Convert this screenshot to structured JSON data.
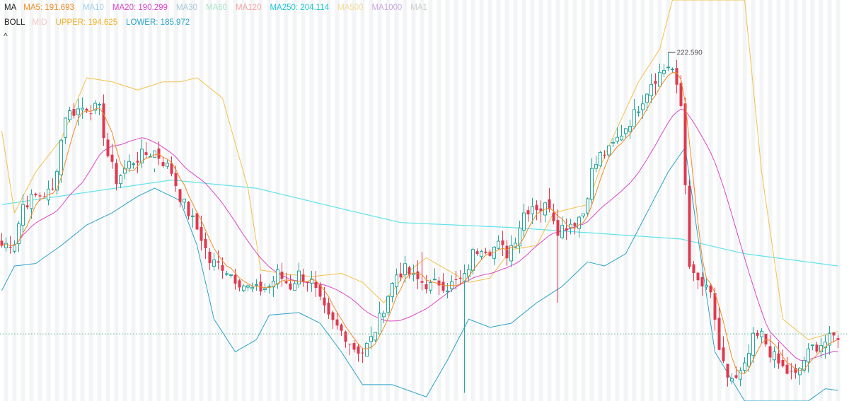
{
  "legend": {
    "ma": {
      "title": "MA",
      "items": [
        {
          "name": "MA5",
          "value": "191.693",
          "color": "#f08a24"
        },
        {
          "name": "MA10",
          "value": "",
          "color": "#9fd0ee"
        },
        {
          "name": "MA20",
          "value": "190.299",
          "color": "#d946c8"
        },
        {
          "name": "MA30",
          "value": "",
          "color": "#a8c8dc"
        },
        {
          "name": "MA60",
          "value": "",
          "color": "#a8e3c9"
        },
        {
          "name": "MA120",
          "value": "",
          "color": "#f5a3a3"
        },
        {
          "name": "MA250",
          "value": "204.114",
          "color": "#1ec7d6"
        },
        {
          "name": "MA500",
          "value": "",
          "color": "#f3d99a"
        },
        {
          "name": "MA1000",
          "value": "",
          "color": "#c9a8e0"
        },
        {
          "name": "MA1",
          "value": "",
          "color": "#cccccc"
        }
      ]
    },
    "boll": {
      "title": "BOLL",
      "items": [
        {
          "name": "MID",
          "value": "",
          "color": "#f4c6c6"
        },
        {
          "name": "UPPER",
          "value": "194.625",
          "color": "#f0b020"
        },
        {
          "name": "LOWER",
          "value": "185.972",
          "color": "#2aa3c8"
        }
      ]
    },
    "collapse_symbol": "^"
  },
  "colors": {
    "up": "#26a69a",
    "down": "#e0384f",
    "background_band": "#f3f4f6",
    "current_line": "#5aaf8a"
  },
  "chart_data": {
    "type": "candlestick",
    "ylim": [
      180,
      229
    ],
    "max_marker": "222.590",
    "max_value": 222.59,
    "current_price": 188.2,
    "indicator_styles": {
      "ma5": "#f08a24",
      "ma20": "#d946c8",
      "ma250": "#5ee3ea",
      "boll_upper": "#f2c14a",
      "boll_lower": "#2aa3c8"
    },
    "key_closes": [
      {
        "x": 0,
        "close": 199.0
      },
      {
        "x": 3,
        "close": 199.5
      },
      {
        "x": 5,
        "close": 204.0
      },
      {
        "x": 8,
        "close": 205.0
      },
      {
        "x": 12,
        "close": 205.6
      },
      {
        "x": 15,
        "close": 215.0
      },
      {
        "x": 20,
        "close": 216.0
      },
      {
        "x": 23,
        "close": 215.5
      },
      {
        "x": 25,
        "close": 210.0
      },
      {
        "x": 27,
        "close": 207.0
      },
      {
        "x": 30,
        "close": 209.0
      },
      {
        "x": 33,
        "close": 210.0
      },
      {
        "x": 36,
        "close": 210.5
      },
      {
        "x": 40,
        "close": 208.0
      },
      {
        "x": 42,
        "close": 205.0
      },
      {
        "x": 44,
        "close": 203.0
      },
      {
        "x": 47,
        "close": 200.0
      },
      {
        "x": 49,
        "close": 197.0
      },
      {
        "x": 52,
        "close": 196.5
      },
      {
        "x": 55,
        "close": 195.0
      },
      {
        "x": 58,
        "close": 193.8
      },
      {
        "x": 60,
        "close": 193.5
      },
      {
        "x": 63,
        "close": 194.0
      },
      {
        "x": 65,
        "close": 195.5
      },
      {
        "x": 68,
        "close": 194.0
      },
      {
        "x": 70,
        "close": 195.5
      },
      {
        "x": 73,
        "close": 194.5
      },
      {
        "x": 75,
        "close": 192.0
      },
      {
        "x": 77,
        "close": 190.0
      },
      {
        "x": 79,
        "close": 189.0
      },
      {
        "x": 81,
        "close": 188.0
      },
      {
        "x": 83,
        "close": 186.5
      },
      {
        "x": 85,
        "close": 186.0
      },
      {
        "x": 87,
        "close": 187.5
      },
      {
        "x": 89,
        "close": 190.0
      },
      {
        "x": 91,
        "close": 193.0
      },
      {
        "x": 93,
        "close": 195.5
      },
      {
        "x": 95,
        "close": 196.0
      },
      {
        "x": 97,
        "close": 195.0
      },
      {
        "x": 99,
        "close": 194.5
      },
      {
        "x": 101,
        "close": 194.0
      },
      {
        "x": 103,
        "close": 194.5
      },
      {
        "x": 105,
        "close": 194.0
      },
      {
        "x": 107,
        "close": 194.5
      },
      {
        "x": 109,
        "close": 195.0
      },
      {
        "x": 111,
        "close": 198.0
      },
      {
        "x": 113,
        "close": 199.0
      },
      {
        "x": 115,
        "close": 198.5
      },
      {
        "x": 117,
        "close": 199.0
      },
      {
        "x": 119,
        "close": 198.0
      },
      {
        "x": 121,
        "close": 200.0
      },
      {
        "x": 123,
        "close": 203.0
      },
      {
        "x": 125,
        "close": 204.0
      },
      {
        "x": 127,
        "close": 203.5
      },
      {
        "x": 129,
        "close": 204.0
      },
      {
        "x": 131,
        "close": 201.0
      },
      {
        "x": 133,
        "close": 201.5
      },
      {
        "x": 135,
        "close": 202.0
      },
      {
        "x": 137,
        "close": 203.0
      },
      {
        "x": 139,
        "close": 208.0
      },
      {
        "x": 141,
        "close": 210.0
      },
      {
        "x": 143,
        "close": 210.5
      },
      {
        "x": 145,
        "close": 212.0
      },
      {
        "x": 147,
        "close": 213.5
      },
      {
        "x": 149,
        "close": 215.0
      },
      {
        "x": 151,
        "close": 217.0
      },
      {
        "x": 153,
        "close": 219.0
      },
      {
        "x": 155,
        "close": 220.0
      },
      {
        "x": 157,
        "close": 221.0
      },
      {
        "x": 158,
        "close": 220.5
      },
      {
        "x": 159,
        "close": 218.0
      },
      {
        "x": 160,
        "close": 216.0
      },
      {
        "x": 162,
        "close": 197.0
      },
      {
        "x": 163,
        "close": 195.0
      },
      {
        "x": 165,
        "close": 194.0
      },
      {
        "x": 167,
        "close": 193.0
      },
      {
        "x": 168,
        "close": 190.0
      },
      {
        "x": 169,
        "close": 185.5
      },
      {
        "x": 171,
        "close": 183.0
      },
      {
        "x": 173,
        "close": 182.5
      },
      {
        "x": 175,
        "close": 184.0
      },
      {
        "x": 177,
        "close": 187.5
      },
      {
        "x": 179,
        "close": 188.0
      },
      {
        "x": 181,
        "close": 186.0
      },
      {
        "x": 183,
        "close": 184.5
      },
      {
        "x": 185,
        "close": 183.5
      },
      {
        "x": 187,
        "close": 183.0
      },
      {
        "x": 189,
        "close": 185.0
      },
      {
        "x": 191,
        "close": 186.5
      },
      {
        "x": 193,
        "close": 187.0
      },
      {
        "x": 195,
        "close": 187.5
      },
      {
        "x": 197,
        "close": 188.0
      }
    ],
    "ma250_points": [
      {
        "x": 0,
        "v": 204.0
      },
      {
        "x": 20,
        "v": 205.5
      },
      {
        "x": 40,
        "v": 207.0
      },
      {
        "x": 60,
        "v": 206.0
      },
      {
        "x": 80,
        "v": 203.5
      },
      {
        "x": 94,
        "v": 201.8
      },
      {
        "x": 120,
        "v": 201.2
      },
      {
        "x": 140,
        "v": 200.5
      },
      {
        "x": 160,
        "v": 199.8
      },
      {
        "x": 175,
        "v": 198.0
      },
      {
        "x": 197,
        "v": 196.5
      }
    ],
    "boll_upper_points": [
      {
        "x": 0,
        "v": 213.0
      },
      {
        "x": 3,
        "v": 203.0
      },
      {
        "x": 8,
        "v": 208.0
      },
      {
        "x": 14,
        "v": 212.0
      },
      {
        "x": 20,
        "v": 219.5
      },
      {
        "x": 26,
        "v": 219.0
      },
      {
        "x": 32,
        "v": 218.0
      },
      {
        "x": 38,
        "v": 219.0
      },
      {
        "x": 42,
        "v": 219.0
      },
      {
        "x": 46,
        "v": 219.5
      },
      {
        "x": 52,
        "v": 217.0
      },
      {
        "x": 58,
        "v": 206.0
      },
      {
        "x": 61,
        "v": 196.0
      },
      {
        "x": 67,
        "v": 195.5
      },
      {
        "x": 73,
        "v": 195.2
      },
      {
        "x": 80,
        "v": 195.6
      },
      {
        "x": 85,
        "v": 194.5
      },
      {
        "x": 90,
        "v": 192.0
      },
      {
        "x": 95,
        "v": 195.5
      },
      {
        "x": 100,
        "v": 197.5
      },
      {
        "x": 105,
        "v": 196.0
      },
      {
        "x": 110,
        "v": 194.5
      },
      {
        "x": 115,
        "v": 195.0
      },
      {
        "x": 120,
        "v": 198.5
      },
      {
        "x": 126,
        "v": 199.0
      },
      {
        "x": 130,
        "v": 203.0
      },
      {
        "x": 138,
        "v": 204.0
      },
      {
        "x": 142,
        "v": 210.0
      },
      {
        "x": 150,
        "v": 219.0
      },
      {
        "x": 155,
        "v": 223.0
      },
      {
        "x": 158,
        "v": 229.0
      },
      {
        "x": 175,
        "v": 229.0
      },
      {
        "x": 179,
        "v": 208.0
      },
      {
        "x": 184,
        "v": 190.0
      },
      {
        "x": 190,
        "v": 187.5
      },
      {
        "x": 197,
        "v": 188.5
      }
    ],
    "boll_lower_points": [
      {
        "x": 0,
        "v": 193.5
      },
      {
        "x": 3,
        "v": 196.5
      },
      {
        "x": 8,
        "v": 196.8
      },
      {
        "x": 14,
        "v": 199.0
      },
      {
        "x": 20,
        "v": 201.5
      },
      {
        "x": 26,
        "v": 203.0
      },
      {
        "x": 32,
        "v": 205.0
      },
      {
        "x": 36,
        "v": 206.0
      },
      {
        "x": 42,
        "v": 204.5
      },
      {
        "x": 46,
        "v": 199.0
      },
      {
        "x": 50,
        "v": 190.0
      },
      {
        "x": 55,
        "v": 186.0
      },
      {
        "x": 60,
        "v": 187.5
      },
      {
        "x": 63,
        "v": 190.5
      },
      {
        "x": 70,
        "v": 190.8
      },
      {
        "x": 75,
        "v": 189.5
      },
      {
        "x": 80,
        "v": 186.0
      },
      {
        "x": 85,
        "v": 182.0
      },
      {
        "x": 92,
        "v": 182.0
      },
      {
        "x": 100,
        "v": 180.5
      },
      {
        "x": 105,
        "v": 185.0
      },
      {
        "x": 110,
        "v": 190.0
      },
      {
        "x": 115,
        "v": 189.0
      },
      {
        "x": 120,
        "v": 189.5
      },
      {
        "x": 126,
        "v": 192.0
      },
      {
        "x": 132,
        "v": 194.0
      },
      {
        "x": 138,
        "v": 197.0
      },
      {
        "x": 142,
        "v": 196.5
      },
      {
        "x": 147,
        "v": 198.0
      },
      {
        "x": 152,
        "v": 203.0
      },
      {
        "x": 157,
        "v": 208.0
      },
      {
        "x": 161,
        "v": 211.0
      },
      {
        "x": 164,
        "v": 200.0
      },
      {
        "x": 168,
        "v": 186.0
      },
      {
        "x": 175,
        "v": 180.0
      },
      {
        "x": 190,
        "v": 180.0
      },
      {
        "x": 194,
        "v": 181.5
      },
      {
        "x": 197,
        "v": 181.3
      }
    ]
  }
}
